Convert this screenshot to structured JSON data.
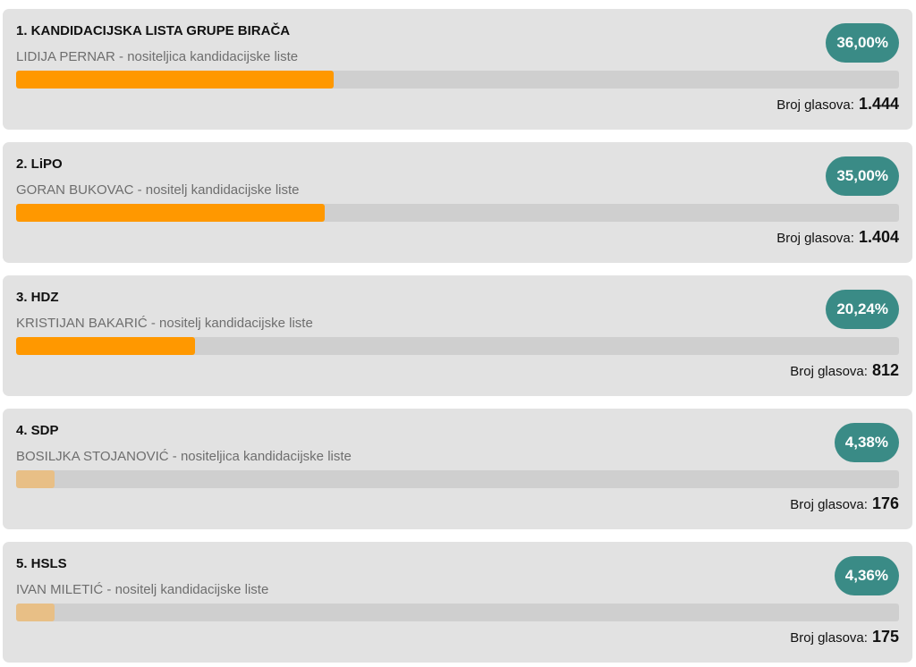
{
  "candidates": [
    {
      "title": "1. KANDIDACIJSKA LISTA GRUPE BIRAČA",
      "subtitle": "LIDIJA PERNAR - nositeljica kandidacijske liste",
      "percent_label": "36,00%",
      "percent": 36.0,
      "votes_label": "Broj glasova:",
      "votes": "1.444",
      "bar_color": "#ff9800"
    },
    {
      "title": "2. LiPO",
      "subtitle": "GORAN BUKOVAC - nositelj kandidacijske liste",
      "percent_label": "35,00%",
      "percent": 35.0,
      "votes_label": "Broj glasova:",
      "votes": "1.404",
      "bar_color": "#ff9800"
    },
    {
      "title": "3. HDZ",
      "subtitle": "KRISTIJAN BAKARIĆ - nositelj kandidacijske liste",
      "percent_label": "20,24%",
      "percent": 20.24,
      "votes_label": "Broj glasova:",
      "votes": "812",
      "bar_color": "#ff9800"
    },
    {
      "title": "4. SDP",
      "subtitle": "BOSILJKA STOJANOVIĆ - nositeljica kandidacijske liste",
      "percent_label": "4,38%",
      "percent": 4.38,
      "votes_label": "Broj glasova:",
      "votes": "176",
      "bar_color": "#e8bf86"
    },
    {
      "title": "5. HSLS",
      "subtitle": "IVAN MILETIĆ - nositelj kandidacijske liste",
      "percent_label": "4,36%",
      "percent": 4.36,
      "votes_label": "Broj glasova:",
      "votes": "175",
      "bar_color": "#e8bf86"
    }
  ],
  "colors": {
    "card_bg": "#e2e2e2",
    "badge_bg": "#3a8b86",
    "bar_track": "#cfcfcf"
  }
}
